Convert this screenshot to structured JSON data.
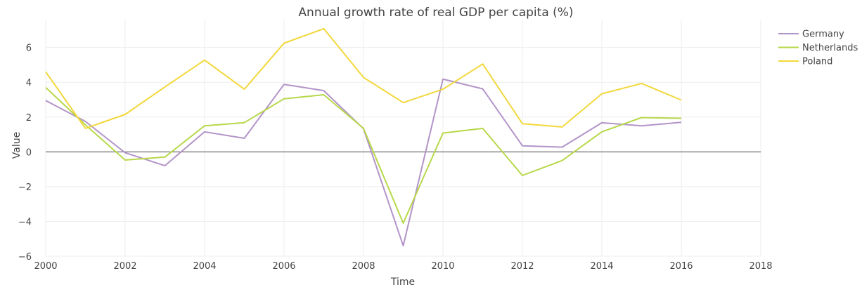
{
  "chart_data": {
    "type": "line",
    "title": "Annual growth rate of real GDP per capita (%)",
    "xlabel": "Time",
    "ylabel": "Value",
    "xlim": [
      2000,
      2018
    ],
    "ylim": [
      -6,
      7.6
    ],
    "x_ticks": [
      2000,
      2002,
      2004,
      2006,
      2008,
      2010,
      2012,
      2014,
      2016,
      2018
    ],
    "y_ticks": [
      -6,
      -4,
      -2,
      0,
      2,
      4,
      6
    ],
    "grid": true,
    "zero_line": true,
    "legend_position": "top-right",
    "x": [
      2000,
      2001,
      2002,
      2003,
      2004,
      2005,
      2006,
      2007,
      2008,
      2009,
      2010,
      2011,
      2012,
      2013,
      2014,
      2015,
      2016
    ],
    "series": [
      {
        "name": "Germany",
        "color": "#b394c8",
        "values": [
          2.95,
          1.75,
          -0.05,
          -0.8,
          1.15,
          0.78,
          3.88,
          3.52,
          1.33,
          -5.4,
          4.18,
          3.62,
          0.35,
          0.27,
          1.67,
          1.5,
          1.7
        ]
      },
      {
        "name": "Netherlands",
        "color": "#b7d84a",
        "values": [
          3.7,
          1.55,
          -0.47,
          -0.3,
          1.5,
          1.68,
          3.05,
          3.28,
          1.35,
          -4.1,
          1.08,
          1.35,
          -1.36,
          -0.5,
          1.15,
          1.97,
          1.93
        ]
      },
      {
        "name": "Poland",
        "color": "#f2d83b",
        "values": [
          4.6,
          1.35,
          2.15,
          3.73,
          5.27,
          3.6,
          6.25,
          7.08,
          4.28,
          2.83,
          3.6,
          5.05,
          1.62,
          1.43,
          3.34,
          3.93,
          2.98
        ]
      }
    ]
  }
}
